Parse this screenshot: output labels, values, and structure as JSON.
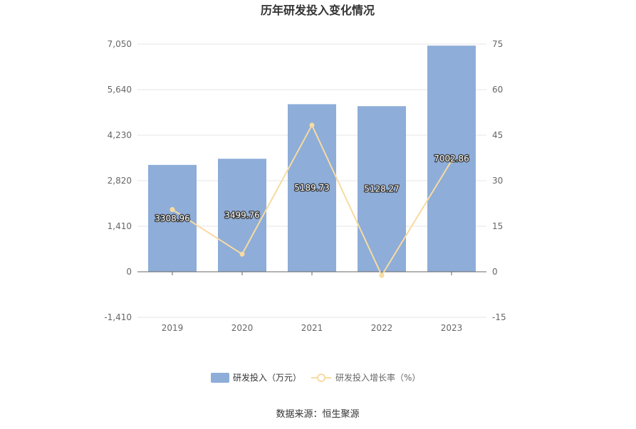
{
  "chart_data": {
    "type": "bar",
    "title": "历年研发投入变化情况",
    "categories": [
      "2019",
      "2020",
      "2021",
      "2022",
      "2023"
    ],
    "series": [
      {
        "name": "研发投入（万元）",
        "type": "bar",
        "axis": "left",
        "values": [
          3308.96,
          3499.76,
          5189.73,
          5128.27,
          7002.86
        ],
        "labels": [
          "3308.96",
          "3499.76",
          "5189.73",
          "5128.27",
          "7002.86"
        ],
        "color": "#8eadd9"
      },
      {
        "name": "研发投入增长率（%）",
        "type": "line",
        "axis": "right",
        "values": [
          20.5,
          5.8,
          48.3,
          -1.2,
          36.6
        ],
        "color": "#f7dba0"
      }
    ],
    "y_left": {
      "min": -1410,
      "max": 7050,
      "ticks": [
        -1410,
        0,
        1410,
        2820,
        4230,
        5640,
        7050
      ],
      "tick_labels": [
        "-1,410",
        "0",
        "1,410",
        "2,820",
        "4,230",
        "5,640",
        "7,050"
      ]
    },
    "y_right": {
      "min": -15,
      "max": 75,
      "ticks": [
        -15,
        0,
        15,
        30,
        45,
        60,
        75
      ],
      "tick_labels": [
        "-15",
        "0",
        "15",
        "30",
        "45",
        "60",
        "75"
      ]
    },
    "grid": true,
    "legend_position": "bottom"
  },
  "source": "数据来源：恒生聚源",
  "colors": {
    "bar": "#8eadd9",
    "line": "#f7dba0",
    "grid": "#e6e6e6",
    "axis": "#666666"
  }
}
